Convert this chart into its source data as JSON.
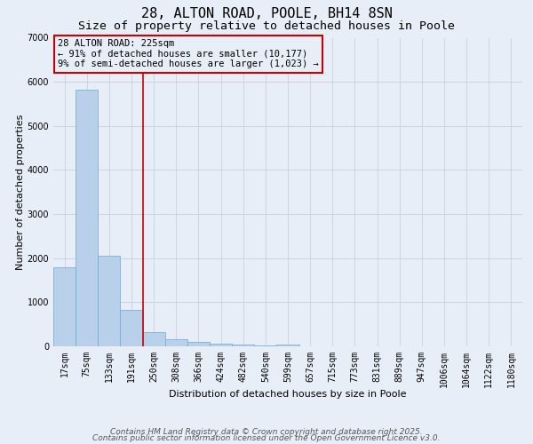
{
  "title_line1": "28, ALTON ROAD, POOLE, BH14 8SN",
  "title_line2": "Size of property relative to detached houses in Poole",
  "xlabel": "Distribution of detached houses by size in Poole",
  "ylabel": "Number of detached properties",
  "categories": [
    "17sqm",
    "75sqm",
    "133sqm",
    "191sqm",
    "250sqm",
    "308sqm",
    "366sqm",
    "424sqm",
    "482sqm",
    "540sqm",
    "599sqm",
    "657sqm",
    "715sqm",
    "773sqm",
    "831sqm",
    "889sqm",
    "947sqm",
    "1006sqm",
    "1064sqm",
    "1122sqm",
    "1180sqm"
  ],
  "values": [
    1800,
    5820,
    2060,
    830,
    330,
    170,
    100,
    70,
    50,
    30,
    50,
    10,
    5,
    3,
    2,
    2,
    1,
    1,
    1,
    0,
    0
  ],
  "bar_color": "#b8d0ea",
  "bar_edge_color": "#6aaad4",
  "bg_color": "#e8eef8",
  "grid_color": "#c8d0de",
  "annotation_text": "28 ALTON ROAD: 225sqm\n← 91% of detached houses are smaller (10,177)\n9% of semi-detached houses are larger (1,023) →",
  "annotation_box_edgecolor": "#cc0000",
  "vline_color": "#cc0000",
  "ylim": [
    0,
    7000
  ],
  "yticks": [
    0,
    1000,
    2000,
    3000,
    4000,
    5000,
    6000,
    7000
  ],
  "footer_line1": "Contains HM Land Registry data © Crown copyright and database right 2025.",
  "footer_line2": "Contains public sector information licensed under the Open Government Licence v3.0.",
  "title_fontsize": 11,
  "subtitle_fontsize": 9.5,
  "axis_label_fontsize": 8,
  "tick_fontsize": 7,
  "annotation_fontsize": 7.5,
  "footer_fontsize": 6.5
}
